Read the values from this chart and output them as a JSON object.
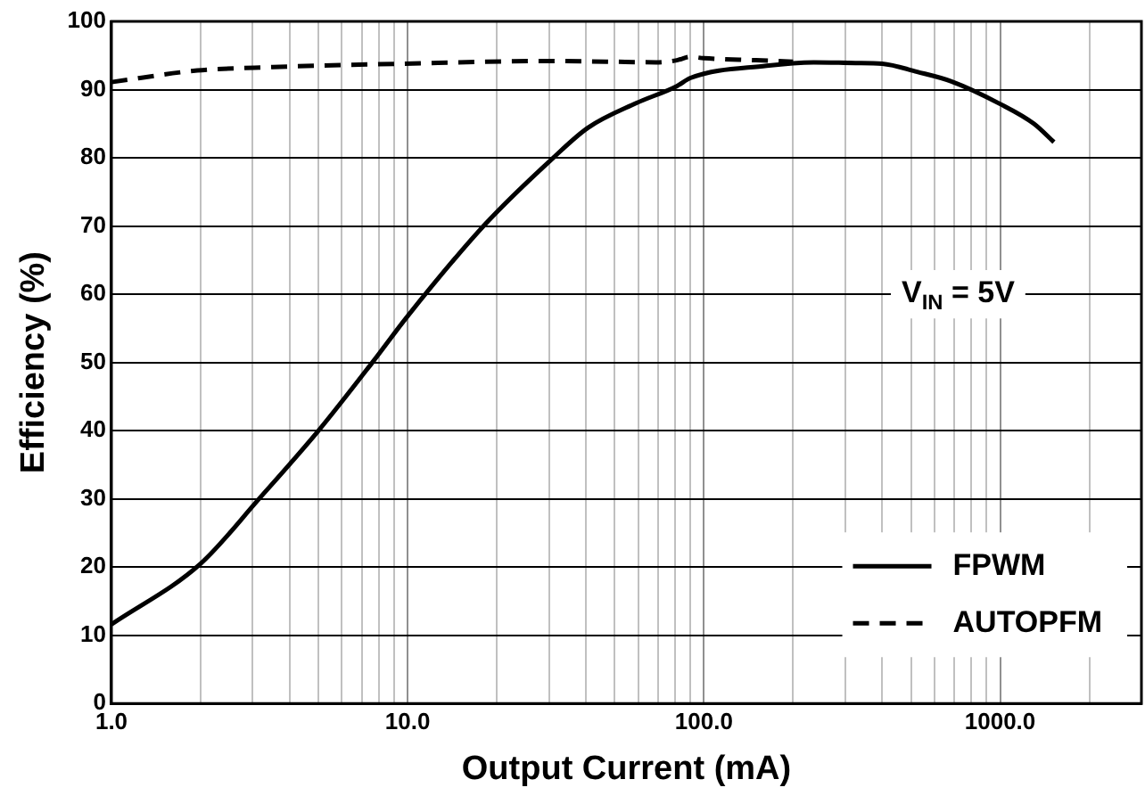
{
  "chart_data": {
    "type": "line",
    "xlabel": "Output Current (mA)",
    "ylabel": "Efficiency (%)",
    "log": "x",
    "xlim": [
      1,
      3000
    ],
    "ylim": [
      0,
      100
    ],
    "xticks": [
      {
        "value": 1,
        "label": "1.0"
      },
      {
        "value": 2,
        "label": null
      },
      {
        "value": 3,
        "label": null
      },
      {
        "value": 4,
        "label": null
      },
      {
        "value": 5,
        "label": null
      },
      {
        "value": 6,
        "label": null
      },
      {
        "value": 7,
        "label": null
      },
      {
        "value": 8,
        "label": null
      },
      {
        "value": 9,
        "label": null
      },
      {
        "value": 10,
        "label": "10.0"
      },
      {
        "value": 20,
        "label": null
      },
      {
        "value": 30,
        "label": null
      },
      {
        "value": 40,
        "label": null
      },
      {
        "value": 50,
        "label": null
      },
      {
        "value": 60,
        "label": null
      },
      {
        "value": 70,
        "label": null
      },
      {
        "value": 80,
        "label": null
      },
      {
        "value": 90,
        "label": null
      },
      {
        "value": 100,
        "label": "100.0"
      },
      {
        "value": 200,
        "label": null
      },
      {
        "value": 300,
        "label": null
      },
      {
        "value": 400,
        "label": null
      },
      {
        "value": 500,
        "label": null
      },
      {
        "value": 600,
        "label": null
      },
      {
        "value": 700,
        "label": null
      },
      {
        "value": 800,
        "label": null
      },
      {
        "value": 900,
        "label": null
      },
      {
        "value": 1000,
        "label": "1000.0"
      },
      {
        "value": 2000,
        "label": null
      }
    ],
    "yticks": [
      0,
      10,
      20,
      30,
      40,
      50,
      60,
      70,
      80,
      90,
      100
    ],
    "grid": true,
    "legend": "bottom right",
    "annotations": [
      "V$_{IN}$ = 5V"
    ],
    "series": [
      {
        "name": "FPWM",
        "color": "#000000",
        "line_style": "solid",
        "x": [
          1,
          2,
          3.15,
          5,
          7.6,
          10,
          18.3,
          31,
          40.6,
          59,
          81,
          90,
          163,
          235,
          325,
          400,
          525,
          685,
          1000,
          1300,
          1520
        ],
        "values": [
          11.6,
          20.5,
          30,
          40,
          50,
          56.8,
          70.3,
          80,
          84.4,
          88,
          90.5,
          91.7,
          93.5,
          94,
          93.9,
          93.8,
          92.6,
          91.2,
          87.9,
          85,
          82.3
        ]
      },
      {
        "name": "AUTOPFM",
        "color": "#000000",
        "line_style": "dashed",
        "x": [
          1,
          1.95,
          3.5,
          9.6,
          31,
          47,
          69,
          81,
          90,
          100,
          150,
          200
        ],
        "values": [
          91.1,
          92.8,
          93.3,
          93.8,
          94.2,
          94.1,
          94,
          94.3,
          94.8,
          94.6,
          94.3,
          94.1
        ]
      }
    ]
  }
}
